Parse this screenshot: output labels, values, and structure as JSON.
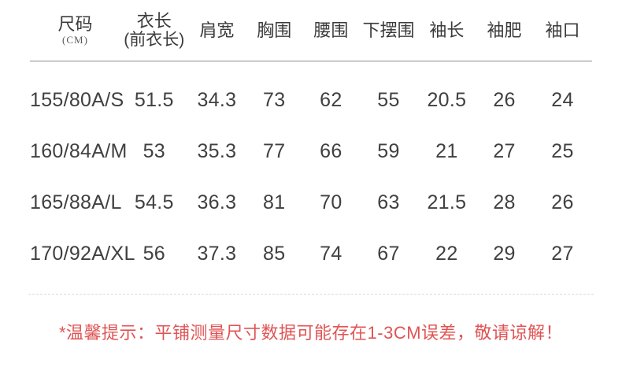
{
  "chart_data": {
    "type": "table",
    "unit": "CM",
    "columns": [
      {
        "label": "尺码",
        "sub": "(CM)"
      },
      {
        "label": "衣长",
        "sub": "(前衣长)"
      },
      {
        "label": "肩宽"
      },
      {
        "label": "胸围"
      },
      {
        "label": "腰围"
      },
      {
        "label": "下摆围"
      },
      {
        "label": "袖长"
      },
      {
        "label": "袖肥"
      },
      {
        "label": "袖口"
      }
    ],
    "rows": [
      [
        "155/80A/S",
        "51.5",
        "34.3",
        "73",
        "62",
        "55",
        "20.5",
        "26",
        "24"
      ],
      [
        "160/84A/M",
        "53",
        "35.3",
        "77",
        "66",
        "59",
        "21",
        "27",
        "25"
      ],
      [
        "165/88A/L",
        "54.5",
        "36.3",
        "81",
        "70",
        "63",
        "21.5",
        "28",
        "26"
      ],
      [
        "170/92A/XL",
        "56",
        "37.3",
        "85",
        "74",
        "67",
        "22",
        "29",
        "27"
      ]
    ]
  },
  "note": "*温馨提示：平铺测量尺寸数据可能存在1-3CM误差，敬请谅解！",
  "colors": {
    "note_red": "#e05454",
    "text": "#404040",
    "header_rule": "#8c8c8c",
    "divider": "#dcdcdc",
    "background": "#ffffff"
  }
}
